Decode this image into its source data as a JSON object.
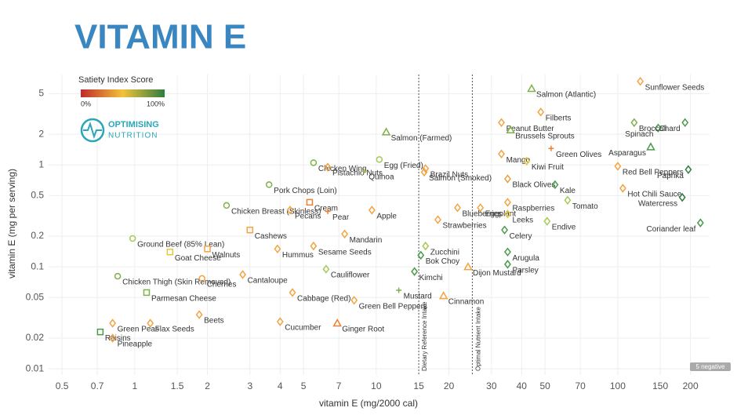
{
  "chart_data": {
    "type": "scatter",
    "title": "VITAMIN E",
    "legend_title": "Satiety Index Score",
    "legend_min": "0%",
    "legend_max": "100%",
    "logo": [
      "OPTIMISING",
      "NUTRITION"
    ],
    "xlabel": "vitamin E (mg/2000 cal)",
    "ylabel": "vitamin E (mg per serving)",
    "badge": "5 negative",
    "xlog": true,
    "ylog": true,
    "grid": true,
    "xlim": [
      0.44,
      240
    ],
    "ylim": [
      0.0087,
      7.7
    ],
    "xticks": [
      0.5,
      0.7,
      1,
      1.5,
      2,
      3,
      4,
      5,
      7,
      10,
      15,
      20,
      30,
      40,
      50,
      70,
      100,
      150,
      200
    ],
    "yticks": [
      0.01,
      0.02,
      0.05,
      0.1,
      0.2,
      0.5,
      1,
      2,
      5
    ],
    "reference_lines": [
      {
        "x": 15,
        "label": "Dietary Reference Intake"
      },
      {
        "x": 25,
        "label": "Optimal Nutrient Intake"
      }
    ],
    "labels": [
      "Salmon (Atlantic)",
      "Sunflower Seeds",
      "Peanut Butter",
      "Filberts",
      "Chard",
      "Spinach",
      "Broccoli",
      "Asparagus",
      "Green Olives",
      "Red Bell Peppers",
      "Paprika",
      "Hot Chili Sauce",
      "Watercress",
      "Coriander leaf",
      "Brussels Sprouts",
      "Mango",
      "Kiwi Fruit",
      "Black Olives",
      "Kale",
      "Raspberries",
      "Tomato",
      "Eggplant",
      "Leeks",
      "Celery",
      "Endive",
      "Arugula",
      "Parsley",
      "Salmon (Farmed)",
      "Egg (Fried)",
      "Chicken Wing",
      "Pork Chops (Loin)",
      "Pistachio Nuts",
      "Quinoa",
      "Salmon (Smoked)",
      "Brazil Nuts",
      "Cream",
      "Pear",
      "Apple",
      "Blueberries",
      "Strawberries",
      "Chicken Breast (Skinless)",
      "Pecans",
      "Ground Beef (85% Lean)",
      "Goat Cheese",
      "Cashews",
      "Walnuts",
      "Mandarin",
      "Sesame Seeds",
      "Hummus",
      "Cauliflower",
      "Zucchini",
      "Bok Choy",
      "Dijon Mustard",
      "Kimchi",
      "Mustard",
      "Cinnamon",
      "Chicken Thigh (Skin Removed)",
      "Cantaloupe",
      "Parmesan Cheese",
      "Cherries",
      "Cabbage (Red)",
      "Green Bell Peppers",
      "Beets",
      "Cucumber",
      "Ginger Root",
      "Green Peas",
      "Flax Seeds",
      "Raisins",
      "Pineapple"
    ],
    "x": [
      44,
      124,
      33,
      48,
      190,
      147,
      117,
      137,
      53,
      100,
      196,
      105,
      185,
      220,
      36,
      33,
      42,
      35,
      55,
      35,
      62,
      27,
      35,
      34,
      51,
      35,
      35,
      11,
      10.3,
      5.5,
      3.6,
      6.3,
      8.9,
      15.8,
      16,
      5.3,
      6.3,
      9.6,
      21.7,
      18,
      2.4,
      4.4,
      0.98,
      1.4,
      3.0,
      2.0,
      7.4,
      5.5,
      3.9,
      6.2,
      16,
      15.3,
      24,
      14.4,
      12.4,
      19,
      0.85,
      2.8,
      1.12,
      1.9,
      4.5,
      8.1,
      1.85,
      4.0,
      6.9,
      0.81,
      1.16,
      0.72,
      0.81
    ],
    "values": [
      5.6,
      6.6,
      2.6,
      3.3,
      2.6,
      2.3,
      2.6,
      1.5,
      1.45,
      0.97,
      0.9,
      0.59,
      0.48,
      0.27,
      2.2,
      1.28,
      1.09,
      0.73,
      0.64,
      0.43,
      0.45,
      0.38,
      0.33,
      0.23,
      0.28,
      0.14,
      0.106,
      2.1,
      1.13,
      1.05,
      0.64,
      0.95,
      0.87,
      0.85,
      0.92,
      0.43,
      0.35,
      0.36,
      0.38,
      0.29,
      0.4,
      0.36,
      0.19,
      0.14,
      0.23,
      0.15,
      0.21,
      0.16,
      0.15,
      0.095,
      0.16,
      0.13,
      0.1,
      0.09,
      0.059,
      0.052,
      0.081,
      0.084,
      0.056,
      0.077,
      0.056,
      0.047,
      0.034,
      0.029,
      0.028,
      0.028,
      0.028,
      0.023,
      0.02
    ],
    "colors": [
      "#7fb04a",
      "#f4a340",
      "#f4a340",
      "#f4a340",
      "#4a9a4a",
      "#4a9a4a",
      "#7fb04a",
      "#4a9a4a",
      "#f08030",
      "#f4a340",
      "#2f7d3e",
      "#f4a340",
      "#2f7d3e",
      "#4a9a4a",
      "#7fb04a",
      "#f4a340",
      "#e8c53a",
      "#e8a040",
      "#4a9a4a",
      "#f4a340",
      "#a6c957",
      "#f4a340",
      "#e8c53a",
      "#4a9a4a",
      "#a6c957",
      "#4a9a4a",
      "#4a9a4a",
      "#7fb04a",
      "#a6c957",
      "#7fb04a",
      "#7fb04a",
      "#f4a340",
      "#a6c957",
      "#f4a340",
      "#f4a340",
      "#f08030",
      "#f08030",
      "#f4a340",
      "#f4a340",
      "#f4a340",
      "#7fb04a",
      "#f4a340",
      "#a6c957",
      "#e8c53a",
      "#f4a340",
      "#f4a340",
      "#f4a340",
      "#f4a340",
      "#f4a340",
      "#a6c957",
      "#a6c957",
      "#4a9a4a",
      "#f4a340",
      "#4a9a4a",
      "#7fb04a",
      "#f4a340",
      "#7fb04a",
      "#f4a340",
      "#7fb04a",
      "#f4a340",
      "#f4a340",
      "#f4a340",
      "#f4a340",
      "#f4a340",
      "#f08030",
      "#f4a340",
      "#f4a340",
      "#4a9a4a",
      "#f4a340"
    ],
    "markers": [
      "triangle",
      "diamond",
      "diamond",
      "diamond",
      "diamond",
      "diamond",
      "diamond",
      "triangle",
      "cross",
      "diamond",
      "diamond",
      "diamond",
      "diamond",
      "diamond",
      "triangle",
      "diamond",
      "diamond",
      "diamond",
      "diamond",
      "diamond",
      "diamond",
      "diamond",
      "diamond",
      "diamond",
      "diamond",
      "diamond",
      "diamond",
      "triangle",
      "circle",
      "circle",
      "circle",
      "diamond",
      "cross",
      "diamond",
      "diamond",
      "square",
      "cross",
      "diamond",
      "diamond",
      "diamond",
      "circle",
      "diamond",
      "circle",
      "square",
      "square",
      "square",
      "diamond",
      "diamond",
      "diamond",
      "diamond",
      "diamond",
      "diamond",
      "triangle",
      "diamond",
      "cross",
      "triangle",
      "circle",
      "diamond",
      "square",
      "circle",
      "diamond",
      "diamond",
      "diamond",
      "diamond",
      "triangle",
      "diamond",
      "diamond",
      "square",
      "diamond"
    ]
  }
}
